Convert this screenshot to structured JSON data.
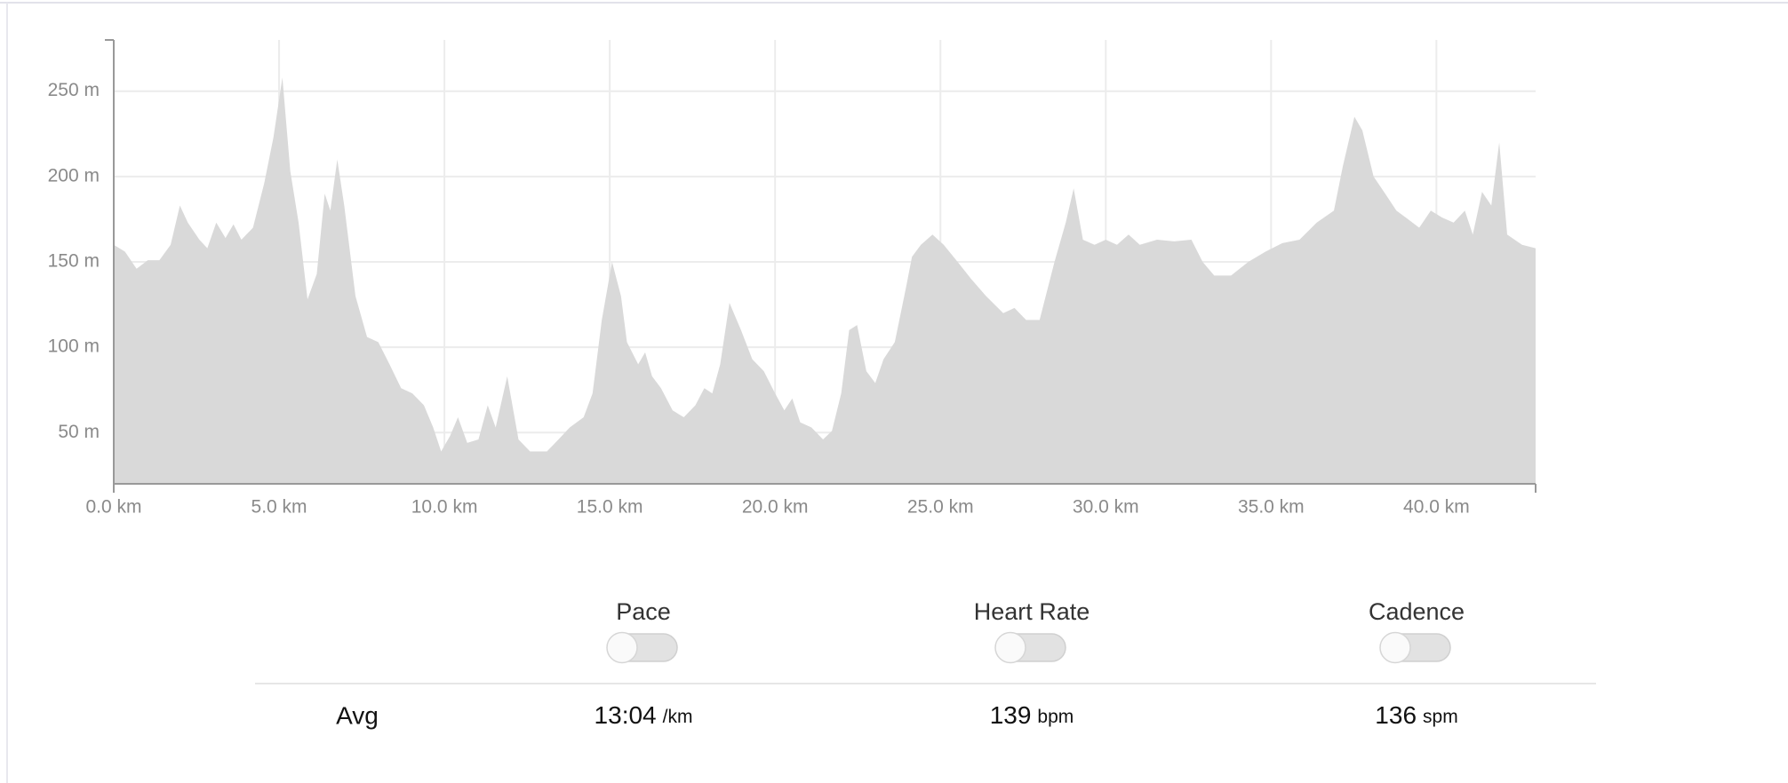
{
  "chart_data": {
    "type": "area",
    "color": "#d9d9d9",
    "grid": true,
    "x": [
      0,
      0.34,
      0.69,
      1.03,
      1.38,
      1.72,
      2.0,
      2.24,
      2.59,
      2.83,
      3.1,
      3.38,
      3.62,
      3.86,
      4.21,
      4.55,
      4.83,
      5.1,
      5.34,
      5.59,
      5.86,
      6.14,
      6.38,
      6.55,
      6.76,
      6.97,
      7.31,
      7.66,
      8.0,
      8.34,
      8.69,
      9.03,
      9.38,
      9.66,
      9.9,
      10.17,
      10.41,
      10.69,
      11.03,
      11.31,
      11.55,
      11.9,
      12.24,
      12.59,
      13.1,
      13.45,
      13.79,
      14.21,
      14.48,
      14.76,
      15.07,
      15.34,
      15.52,
      15.86,
      16.07,
      16.28,
      16.55,
      16.9,
      17.24,
      17.59,
      17.86,
      18.1,
      18.34,
      18.62,
      18.97,
      19.31,
      19.66,
      20.0,
      20.28,
      20.52,
      20.76,
      21.1,
      21.45,
      21.72,
      22.0,
      22.24,
      22.48,
      22.76,
      23.03,
      23.28,
      23.62,
      23.97,
      24.14,
      24.41,
      24.76,
      25.1,
      25.52,
      25.93,
      26.38,
      26.9,
      27.24,
      27.59,
      28.0,
      28.45,
      28.79,
      29.03,
      29.31,
      29.66,
      30.0,
      30.34,
      30.69,
      31.03,
      31.55,
      32.07,
      32.59,
      32.93,
      33.28,
      33.79,
      34.31,
      34.83,
      35.34,
      35.86,
      36.38,
      36.9,
      37.17,
      37.52,
      37.76,
      38.1,
      38.45,
      38.79,
      39.14,
      39.48,
      39.83,
      40.17,
      40.52,
      40.86,
      41.1,
      41.38,
      41.66,
      41.9,
      42.14,
      42.59,
      43.0
    ],
    "values": [
      160,
      156,
      146,
      151,
      151,
      160,
      183,
      173,
      163,
      158,
      173,
      164,
      172,
      163,
      170,
      196,
      223,
      258,
      203,
      173,
      128,
      143,
      190,
      180,
      210,
      183,
      130,
      106,
      103,
      90,
      76,
      73,
      66,
      53,
      39,
      48,
      59,
      44,
      46,
      66,
      53,
      83,
      46,
      39,
      39,
      46,
      53,
      59,
      73,
      116,
      150,
      130,
      103,
      90,
      97,
      83,
      76,
      63,
      59,
      66,
      76,
      73,
      90,
      126,
      110,
      93,
      86,
      73,
      63,
      70,
      56,
      53,
      46,
      51,
      73,
      110,
      113,
      86,
      79,
      93,
      103,
      136,
      153,
      160,
      166,
      160,
      150,
      140,
      130,
      120,
      123,
      116,
      116,
      150,
      173,
      193,
      163,
      160,
      163,
      160,
      166,
      160,
      163,
      162,
      163,
      150,
      142,
      142,
      150,
      156,
      161,
      163,
      173,
      180,
      206,
      235,
      227,
      200,
      190,
      180,
      175,
      170,
      180,
      176,
      173,
      180,
      166,
      191,
      183,
      220,
      166,
      160,
      158
    ],
    "xlim": [
      0,
      43
    ],
    "ylim": [
      20,
      280
    ],
    "xticks": [
      {
        "value": 0,
        "label": "0.0 km"
      },
      {
        "value": 5,
        "label": "5.0 km"
      },
      {
        "value": 10,
        "label": "10.0 km"
      },
      {
        "value": 15,
        "label": "15.0 km"
      },
      {
        "value": 20,
        "label": "20.0 km"
      },
      {
        "value": 25,
        "label": "25.0 km"
      },
      {
        "value": 30,
        "label": "30.0 km"
      },
      {
        "value": 35,
        "label": "35.0 km"
      },
      {
        "value": 40,
        "label": "40.0 km"
      }
    ],
    "yticks": [
      {
        "value": 50,
        "label": "50 m"
      },
      {
        "value": 100,
        "label": "100 m"
      },
      {
        "value": 150,
        "label": "150 m"
      },
      {
        "value": 200,
        "label": "200 m"
      },
      {
        "value": 250,
        "label": "250 m"
      }
    ]
  },
  "summary": {
    "row_label": "Avg",
    "metrics": [
      {
        "name": "Pace",
        "value": "13:04",
        "unit": "/km"
      },
      {
        "name": "Heart Rate",
        "value": "139",
        "unit": "bpm"
      },
      {
        "name": "Cadence",
        "value": "136",
        "unit": "spm"
      }
    ]
  }
}
